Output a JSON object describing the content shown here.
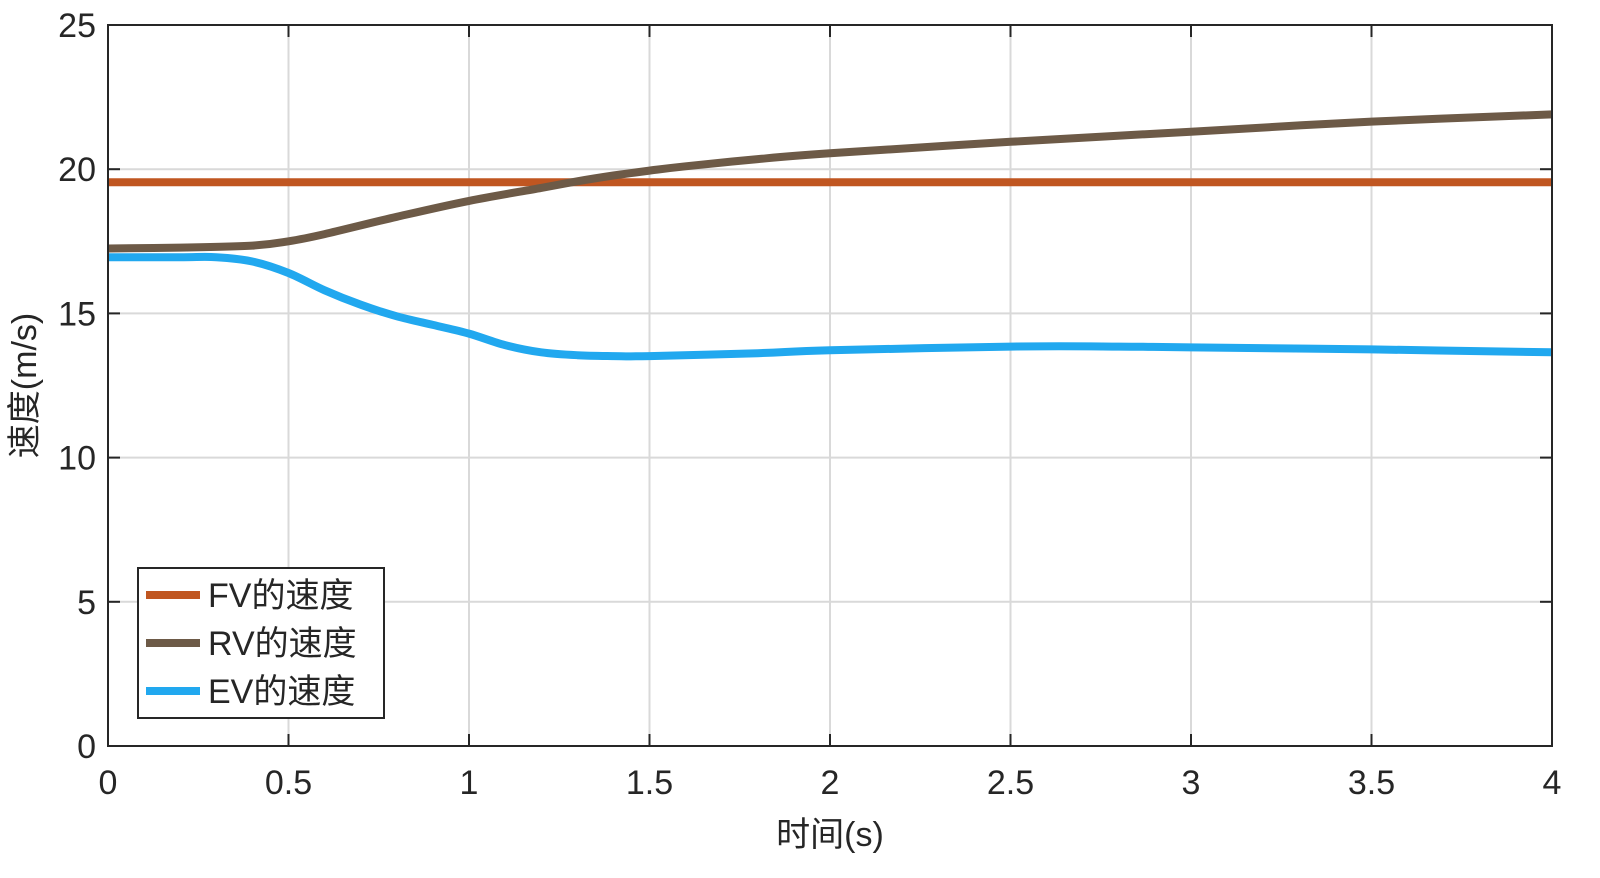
{
  "chart_data": {
    "type": "line",
    "title": "",
    "xlabel": "时间(s)",
    "ylabel": "速度(m/s)",
    "xlim": [
      0,
      4
    ],
    "ylim": [
      0,
      25
    ],
    "xticks": [
      0,
      0.5,
      1,
      1.5,
      2,
      2.5,
      3,
      3.5,
      4
    ],
    "xtick_labels": [
      "0",
      "0.5",
      "1",
      "1.5",
      "2",
      "2.5",
      "3",
      "3.5",
      "4"
    ],
    "yticks": [
      0,
      5,
      10,
      15,
      20,
      25
    ],
    "ytick_labels": [
      "0",
      "5",
      "10",
      "15",
      "20",
      "25"
    ],
    "grid": true,
    "legend_position": "bottom-left",
    "series": [
      {
        "name": "FV的速度",
        "color": "#c05621",
        "x": [
          0,
          4
        ],
        "y": [
          19.55,
          19.55
        ]
      },
      {
        "name": "RV的速度",
        "color": "#6d5a47",
        "x": [
          0,
          0.2,
          0.4,
          0.5,
          0.6,
          0.8,
          1.0,
          1.2,
          1.3,
          1.4,
          1.5,
          1.6,
          1.8,
          2.0,
          2.5,
          3.0,
          3.5,
          4.0
        ],
        "y": [
          17.25,
          17.28,
          17.35,
          17.5,
          17.75,
          18.35,
          18.9,
          19.35,
          19.58,
          19.78,
          19.95,
          20.1,
          20.35,
          20.55,
          20.95,
          21.3,
          21.65,
          21.9
        ]
      },
      {
        "name": "EV的速度",
        "color": "#21a8ef",
        "x": [
          0,
          0.2,
          0.3,
          0.4,
          0.5,
          0.6,
          0.7,
          0.8,
          0.9,
          1.0,
          1.1,
          1.2,
          1.3,
          1.4,
          1.5,
          1.8,
          2.0,
          2.5,
          2.8,
          3.0,
          3.5,
          4.0
        ],
        "y": [
          16.95,
          16.95,
          16.95,
          16.8,
          16.4,
          15.8,
          15.3,
          14.9,
          14.6,
          14.3,
          13.9,
          13.65,
          13.55,
          13.52,
          13.52,
          13.62,
          13.72,
          13.85,
          13.85,
          13.82,
          13.75,
          13.65
        ]
      }
    ]
  }
}
